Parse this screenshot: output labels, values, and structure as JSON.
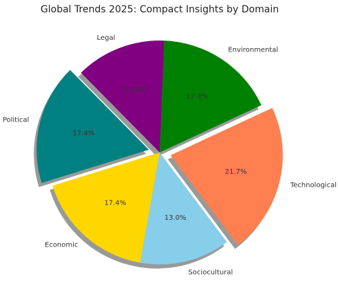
{
  "chart_data": {
    "type": "pie",
    "title": "Global Trends 2025: Compact Insights by Domain",
    "categories": [
      "Environmental",
      "Legal",
      "Political",
      "Economic",
      "Sociocultural",
      "Technological"
    ],
    "values": [
      17.4,
      13.0,
      17.4,
      17.4,
      13.0,
      21.7
    ],
    "value_labels": [
      "17.4%",
      "13.0%",
      "17.4%",
      "17.4%",
      "13.0%",
      "21.7%"
    ],
    "colors": [
      "#008000",
      "#800080",
      "#008080",
      "#ffd700",
      "#87ceeb",
      "#ff7f50"
    ],
    "exploded": [
      false,
      false,
      true,
      false,
      false,
      true
    ],
    "shadow": true
  }
}
